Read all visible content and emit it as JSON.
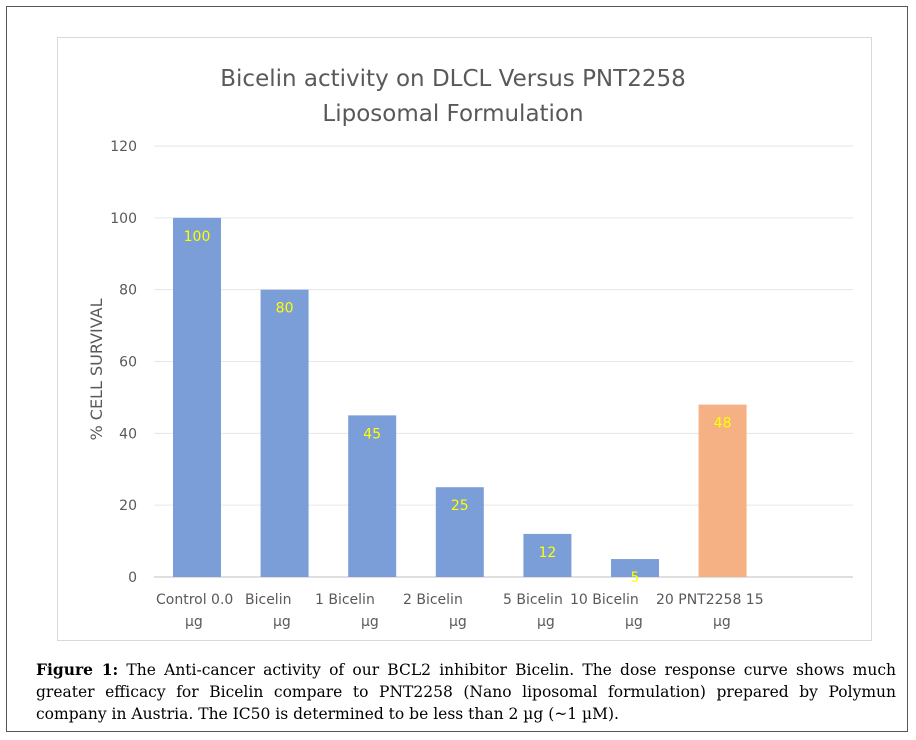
{
  "chart_data": {
    "type": "bar",
    "title": [
      "Bicelin activity on DLCL Versus PNT2258",
      "Liposomal Formulation"
    ],
    "ylabel": "% CELL SURVIVAL",
    "xlabel": "",
    "ylim": [
      0,
      120
    ],
    "yticks": [
      0,
      20,
      40,
      60,
      80,
      100,
      120
    ],
    "grid": true,
    "category_label_lines": [
      [
        "Control  0.0",
        "µg"
      ],
      [
        "Bicelin",
        "µg"
      ],
      [
        "1  Bicelin",
        "µg"
      ],
      [
        "2  Bicelin",
        "µg"
      ],
      [
        "5  Bicelin",
        "µg"
      ],
      [
        "10  Bicelin",
        "µg"
      ],
      [
        "20  PNT2258  15",
        "µg"
      ]
    ],
    "values": [
      100,
      80,
      45,
      25,
      12,
      5,
      48
    ],
    "data_labels": [
      "100",
      "80",
      "45",
      "25",
      "12",
      "5",
      "48"
    ],
    "bar_colors": [
      "#7b9ed9",
      "#7b9ed9",
      "#7b9ed9",
      "#7b9ed9",
      "#7b9ed9",
      "#7b9ed9",
      "#f5b183"
    ],
    "label_color": "#ffff00"
  },
  "caption": {
    "prefix": "Figure 1:",
    "text": " The Anti-cancer activity of our BCL2 inhibitor Bicelin. The dose response curve shows much greater efficacy for Bicelin compare to PNT2258 (Nano liposomal formulation) prepared by Polymun company in Austria. The IC50 is determined to be less than 2 µg (~1 µM)."
  }
}
